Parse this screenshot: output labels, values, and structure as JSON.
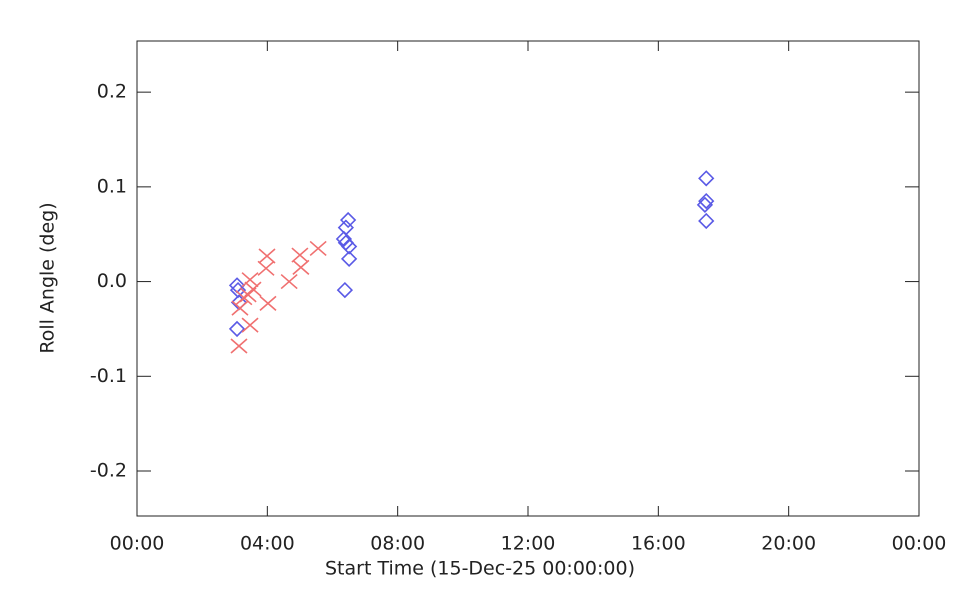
{
  "chart_data": {
    "type": "scatter",
    "xlabel": "Start Time (15-Dec-25 00:00:00)",
    "ylabel": "Roll Angle (deg)",
    "xlim": [
      0,
      24
    ],
    "xticks": [
      {
        "value": 0,
        "label": "00:00"
      },
      {
        "value": 4,
        "label": "04:00"
      },
      {
        "value": 8,
        "label": "08:00"
      },
      {
        "value": 12,
        "label": "12:00"
      },
      {
        "value": 16,
        "label": "16:00"
      },
      {
        "value": 20,
        "label": "20:00"
      },
      {
        "value": 24,
        "label": "00:00"
      }
    ],
    "ylim": [
      -0.2475,
      0.254
    ],
    "yticks": [
      -0.2,
      -0.1,
      {
        "value": 0,
        "label": "0.0"
      },
      0.1,
      0.2
    ],
    "series": [
      {
        "marker": "diamond",
        "color": "#5a5ae6",
        "x": [
          3.07,
          3.1,
          3.13,
          3.07,
          6.48,
          6.41,
          6.35,
          6.41,
          6.51,
          6.51,
          6.38,
          17.47,
          17.47,
          17.43,
          17.47
        ],
        "values": [
          -0.004,
          -0.009,
          -0.022,
          -0.05,
          0.065,
          0.057,
          0.045,
          0.041,
          0.037,
          0.024,
          -0.009,
          0.109,
          0.085,
          0.081,
          0.064
        ]
      },
      {
        "marker": "x",
        "color": "#f07070",
        "x": [
          3.13,
          3.16,
          3.28,
          3.41,
          3.47,
          3.47,
          3.56,
          3.96,
          3.99,
          4.02,
          4.67,
          5.03,
          5.0,
          5.56
        ],
        "values": [
          -0.068,
          -0.028,
          -0.017,
          -0.014,
          -0.046,
          0.002,
          -0.008,
          0.014,
          0.027,
          -0.023,
          0.0,
          0.015,
          0.028,
          0.035
        ]
      }
    ]
  }
}
